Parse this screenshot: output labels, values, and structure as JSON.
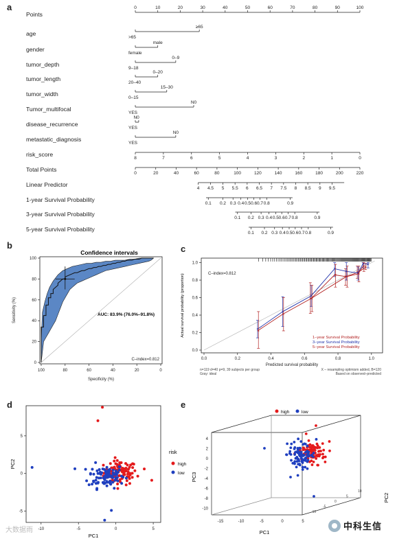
{
  "panels": {
    "a": "a",
    "b": "b",
    "c": "c",
    "d": "d",
    "e": "e"
  },
  "nomogram": {
    "rows": [
      {
        "label": "Points",
        "kind": "scale",
        "start": 0,
        "end": 100,
        "ticks": [
          0,
          10,
          20,
          30,
          40,
          50,
          60,
          70,
          80,
          90,
          100
        ]
      },
      {
        "label": "age",
        "kind": "cat",
        "start": 0,
        "end": 28.5,
        "labels": [
          {
            "text": "≥65",
            "at": 28.5,
            "pos": "above"
          },
          {
            "text": ">65",
            "at": 0,
            "pos": "below"
          }
        ]
      },
      {
        "label": "gender",
        "kind": "cat",
        "start": 0,
        "end": 10,
        "labels": [
          {
            "text": "male",
            "at": 10,
            "pos": "above"
          },
          {
            "text": "female",
            "at": 0,
            "pos": "below"
          }
        ]
      },
      {
        "label": "tumor_depth",
        "kind": "cat",
        "start": 0,
        "end": 18,
        "labels": [
          {
            "text": "0–9",
            "at": 18,
            "pos": "above"
          },
          {
            "text": "9–18",
            "at": 0,
            "pos": "below"
          }
        ]
      },
      {
        "label": "tumor_length",
        "kind": "cat",
        "start": 0,
        "end": 10,
        "labels": [
          {
            "text": "0–20",
            "at": 10,
            "pos": "above"
          },
          {
            "text": "20–40",
            "at": 0,
            "pos": "below"
          }
        ]
      },
      {
        "label": "tumor_width",
        "kind": "cat",
        "start": 0,
        "end": 14,
        "labels": [
          {
            "text": "15–30",
            "at": 14,
            "pos": "above"
          },
          {
            "text": "0–15",
            "at": 0,
            "pos": "below"
          }
        ]
      },
      {
        "label": "Tumor_multifocal",
        "kind": "cat",
        "start": 0,
        "end": 26,
        "labels": [
          {
            "text": "N0",
            "at": 26,
            "pos": "above"
          },
          {
            "text": "YES",
            "at": 0,
            "pos": "below"
          }
        ]
      },
      {
        "label": "disease_recurrence",
        "kind": "cat",
        "start": 0,
        "end": 1.5,
        "labels": [
          {
            "text": "N0",
            "at": 0.5,
            "pos": "above"
          },
          {
            "text": "YES",
            "at": 0,
            "pos": "below"
          }
        ]
      },
      {
        "label": "metastatic_diagnosis",
        "kind": "cat",
        "start": 0,
        "end": 18,
        "labels": [
          {
            "text": "N0",
            "at": 18,
            "pos": "above"
          },
          {
            "text": "YES",
            "at": 0,
            "pos": "below"
          }
        ]
      },
      {
        "label": "risk_score",
        "kind": "scale",
        "start": 0,
        "end": 100,
        "ticks": [
          {
            "v": 0,
            "t": "8"
          },
          {
            "v": 12.5,
            "t": "7"
          },
          {
            "v": 25,
            "t": "6"
          },
          {
            "v": 37.5,
            "t": "5"
          },
          {
            "v": 50,
            "t": "4"
          },
          {
            "v": 62.5,
            "t": "3"
          },
          {
            "v": 75,
            "t": "2"
          },
          {
            "v": 87.5,
            "t": "1"
          },
          {
            "v": 100,
            "t": "0"
          }
        ]
      },
      {
        "label": "Total Points",
        "kind": "scale",
        "start": 0,
        "end": 100,
        "ticks": [
          {
            "v": 0,
            "t": "0"
          },
          {
            "v": 9.09,
            "t": "20"
          },
          {
            "v": 18.18,
            "t": "40"
          },
          {
            "v": 27.27,
            "t": "60"
          },
          {
            "v": 36.36,
            "t": "80"
          },
          {
            "v": 45.45,
            "t": "100"
          },
          {
            "v": 54.55,
            "t": "120"
          },
          {
            "v": 63.64,
            "t": "140"
          },
          {
            "v": 72.73,
            "t": "160"
          },
          {
            "v": 81.82,
            "t": "180"
          },
          {
            "v": 90.91,
            "t": "200"
          },
          {
            "v": 100,
            "t": "220"
          }
        ]
      },
      {
        "label": "Linear Predictor",
        "kind": "scale",
        "start": 28,
        "end": 93,
        "ticks": [
          {
            "v": 28,
            "t": "4"
          },
          {
            "v": 33.5,
            "t": "4.5"
          },
          {
            "v": 39,
            "t": "5"
          },
          {
            "v": 44.4,
            "t": "5.5"
          },
          {
            "v": 49.8,
            "t": "6"
          },
          {
            "v": 55.2,
            "t": "6.5"
          },
          {
            "v": 60.6,
            "t": "7"
          },
          {
            "v": 66,
            "t": "7.5"
          },
          {
            "v": 71.4,
            "t": "8"
          },
          {
            "v": 76.8,
            "t": "8.5"
          },
          {
            "v": 82.2,
            "t": "9"
          },
          {
            "v": 87.6,
            "t": "9.5"
          }
        ]
      },
      {
        "label": "1-year Survival Probability",
        "kind": "scale",
        "start": 31.5,
        "end": 70,
        "ticks": [
          {
            "v": 32.5,
            "t": "0.1"
          },
          {
            "v": 39,
            "t": "0.2"
          },
          {
            "v": 43.5,
            "t": "0.3"
          },
          {
            "v": 47,
            "t": "0.4"
          },
          {
            "v": 50,
            "t": "0.5"
          },
          {
            "v": 52.8,
            "t": "0.6"
          },
          {
            "v": 55.5,
            "t": "0.7"
          },
          {
            "v": 58.5,
            "t": "0.8"
          },
          {
            "v": 69,
            "t": "0.9"
          }
        ]
      },
      {
        "label": "3-year Survival Probability",
        "kind": "scale",
        "start": 44.5,
        "end": 82,
        "ticks": [
          {
            "v": 45.5,
            "t": "0.1"
          },
          {
            "v": 51.5,
            "t": "0.2"
          },
          {
            "v": 56,
            "t": "0.3"
          },
          {
            "v": 59.5,
            "t": "0.4"
          },
          {
            "v": 62.5,
            "t": "0.5"
          },
          {
            "v": 65.2,
            "t": "0.6"
          },
          {
            "v": 68,
            "t": "0.7"
          },
          {
            "v": 71,
            "t": "0.8"
          },
          {
            "v": 81,
            "t": "0.9"
          }
        ]
      },
      {
        "label": "5-year Survival Probability",
        "kind": "scale",
        "start": 50.5,
        "end": 88,
        "ticks": [
          {
            "v": 51.5,
            "t": "0.1"
          },
          {
            "v": 57.5,
            "t": "0.2"
          },
          {
            "v": 62,
            "t": "0.3"
          },
          {
            "v": 65.5,
            "t": "0.4"
          },
          {
            "v": 68.5,
            "t": "0.5"
          },
          {
            "v": 71.2,
            "t": "0.6"
          },
          {
            "v": 74,
            "t": "0.7"
          },
          {
            "v": 77,
            "t": "0.8"
          },
          {
            "v": 87,
            "t": "0.9"
          }
        ]
      }
    ]
  },
  "chart_data": [
    {
      "panel": "b",
      "type": "line",
      "title": "Confidence intervals",
      "xlabel": "Specificity (%)",
      "ylabel": "Sensitivity (%)",
      "x_reversed": true,
      "xlim": [
        100,
        0
      ],
      "ylim": [
        0,
        100
      ],
      "xticks": [
        100,
        80,
        60,
        40,
        20,
        0
      ],
      "yticks": [
        0,
        20,
        40,
        60,
        80,
        100
      ],
      "auc_text": "AUC: 83.9% (76.0%–91.8%)",
      "cindex_text": "C–index=0.812",
      "roc": {
        "x": [
          100,
          100,
          98,
          98,
          96,
          96,
          94,
          94,
          92,
          92,
          90,
          90,
          88,
          86,
          86,
          84,
          82,
          80,
          80,
          78,
          76,
          74,
          72,
          70,
          68,
          66,
          64,
          62,
          60,
          58,
          56,
          54,
          52,
          50,
          48,
          46,
          44,
          42,
          40,
          38,
          36,
          34,
          32,
          30,
          28,
          26,
          24,
          22,
          20,
          18,
          16,
          14,
          12,
          10,
          8,
          6
        ],
        "y": [
          0,
          34,
          34,
          45,
          45,
          55,
          55,
          62,
          62,
          66,
          66,
          70,
          72,
          74,
          76,
          78,
          80,
          80,
          82,
          83,
          84,
          85,
          86,
          86,
          87,
          88,
          88,
          89,
          90,
          90,
          91,
          91,
          92,
          92,
          93,
          93,
          94,
          94,
          95,
          95,
          96,
          96,
          97,
          97,
          98,
          98,
          98,
          99,
          99,
          99,
          100,
          100,
          100,
          100,
          100,
          100
        ]
      },
      "ci_upper": {
        "x": [
          100,
          99,
          97,
          95,
          93,
          90,
          86,
          82,
          78,
          74,
          70,
          66,
          62,
          58,
          54,
          50,
          46,
          42,
          38,
          34,
          30,
          26,
          22,
          18,
          14,
          10,
          8,
          6
        ],
        "y": [
          20,
          48,
          58,
          66,
          72,
          78,
          84,
          88,
          90,
          92,
          93,
          94,
          95,
          95,
          96,
          96,
          97,
          97,
          98,
          98,
          98,
          99,
          99,
          100,
          100,
          100,
          100,
          100
        ]
      },
      "ci_lower": {
        "x": [
          100,
          98,
          96,
          94,
          92,
          90,
          88,
          86,
          84,
          82,
          80,
          78,
          76,
          74,
          72,
          70,
          66,
          62,
          58,
          54,
          50,
          46,
          42,
          38,
          34,
          30,
          26,
          22,
          18,
          14,
          10,
          8,
          6
        ],
        "y": [
          0,
          20,
          24,
          28,
          32,
          36,
          40,
          46,
          52,
          58,
          62,
          66,
          70,
          72,
          74,
          76,
          78,
          80,
          82,
          84,
          86,
          88,
          89,
          90,
          91,
          92,
          93,
          94,
          95,
          96,
          97,
          98,
          100
        ]
      },
      "threshold_point": {
        "x": 80,
        "y": 80,
        "x_err": [
          88,
          72
        ],
        "y_err": [
          70,
          92
        ]
      }
    },
    {
      "panel": "c",
      "type": "line",
      "xlabel": "Predicted survival probability",
      "ylabel": "Actual survival probability (proportion)",
      "xlim": [
        0,
        1
      ],
      "ylim": [
        0,
        1
      ],
      "xticks": [
        0.0,
        0.2,
        0.4,
        0.6,
        0.8,
        1.0
      ],
      "yticks": [
        0.0,
        0.2,
        0.4,
        0.6,
        0.8,
        1.0
      ],
      "cindex_text": "C–index=0.812",
      "footnote_left": "n=119 d=40 p=9, 39 subjects per group\nGray: ideal",
      "footnote_right": "X – resampling optimism added, B=120\nBased on observed–predicted",
      "series": [
        {
          "name": "1–year Survival Probability",
          "color": "#b22222",
          "x": [
            0.64,
            0.85,
            0.92,
            0.97
          ],
          "y": [
            0.59,
            0.84,
            0.89,
            0.95
          ],
          "err_lo": [
            0.42,
            0.74,
            0.82,
            0.92
          ],
          "err_hi": [
            0.77,
            0.93,
            0.96,
            0.99
          ]
        },
        {
          "name": "3–year Survival Probability",
          "color": "#2233aa",
          "x": [
            0.32,
            0.47,
            0.64,
            0.78,
            0.85,
            0.92,
            0.95,
            0.98
          ],
          "y": [
            0.24,
            0.44,
            0.62,
            0.93,
            0.9,
            0.88,
            0.99,
            0.98
          ],
          "err_lo": [
            0.14,
            0.27,
            0.5,
            0.84,
            0.8,
            0.8,
            0.94,
            0.94
          ],
          "err_hi": [
            0.34,
            0.61,
            0.74,
            1.0,
            1.0,
            0.95,
            1.0,
            1.0
          ]
        },
        {
          "name": "5–year Survival Probability",
          "color": "#b22222",
          "x": [
            0.32,
            0.47,
            0.64,
            0.78,
            0.85,
            0.92,
            0.95
          ],
          "y": [
            0.22,
            0.41,
            0.59,
            0.86,
            0.84,
            0.87,
            0.96
          ],
          "err_lo": [
            0.02,
            0.22,
            0.44,
            0.72,
            0.72,
            0.78,
            0.9
          ],
          "err_hi": [
            0.44,
            0.6,
            0.74,
            0.98,
            0.96,
            0.96,
            1.0
          ]
        }
      ]
    },
    {
      "panel": "d",
      "type": "scatter",
      "xlabel": "PC1",
      "ylabel": "PC2",
      "xlim": [
        -12,
        6
      ],
      "ylim": [
        -6.5,
        9
      ],
      "xticks": [
        -10,
        -5,
        0,
        5
      ],
      "yticks": [
        -5,
        0,
        5
      ],
      "legend_title": "risk",
      "legend_position": "right",
      "series": [
        {
          "name": "high",
          "color": "#e41a1c"
        },
        {
          "name": "low",
          "color": "#1f3fbf"
        }
      ]
    },
    {
      "panel": "e",
      "type": "scatter",
      "xlabel": "PC1",
      "ylabel": "PC3",
      "zlabel": "PC2",
      "xticks": [
        -15,
        -10,
        -5,
        0,
        5
      ],
      "yticks": [
        -10,
        -8,
        -6,
        -4,
        -2,
        0,
        2,
        4
      ],
      "zticks": [
        -10,
        -5,
        0,
        5,
        10
      ],
      "legend_position": "top",
      "series": [
        {
          "name": "high",
          "color": "#e41a1c"
        },
        {
          "name": "low",
          "color": "#1f3fbf"
        }
      ]
    }
  ],
  "watermark": "大数据雨",
  "brand": "中科生信"
}
